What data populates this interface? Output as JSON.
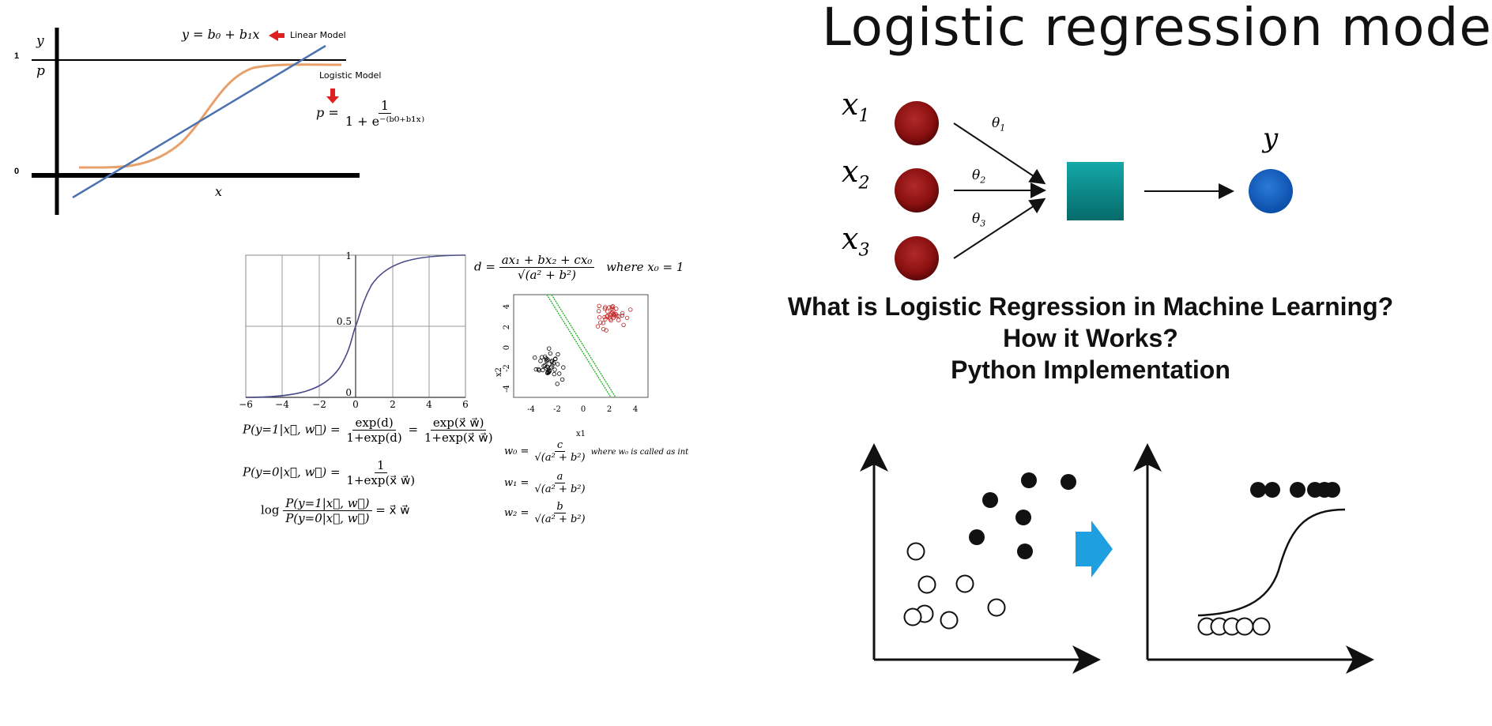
{
  "panel_linear_logistic": {
    "y_axis_label": "y",
    "p_axis_label": "p",
    "x_axis_label": "x",
    "tick_one": "1",
    "tick_zero": "0",
    "linear_equation": "y = b₀ + b₁x",
    "linear_model_label": "Linear Model",
    "logistic_model_label": "Logistic Model",
    "logistic_eq_lhs": "p =",
    "logistic_eq_num": "1",
    "logistic_eq_den": "1 + e⁻⁽ᵇ⁰⁺ᵇ¹ˣ⁾",
    "colors": {
      "linear_line": "#4a72b0",
      "logistic_curve": "#e8a06a",
      "arrow": "#e02020"
    }
  },
  "panel_sigmoid": {
    "x_ticks": [
      "−6",
      "−4",
      "−2",
      "0",
      "2",
      "4",
      "6"
    ],
    "y_ticks": [
      "0",
      "0.5",
      "1"
    ],
    "curve_color": "#4b4b8a"
  },
  "panel_formulas": {
    "d_eq_lhs": "d =",
    "d_eq_num": "ax₁ + bx₂ + cx₀",
    "d_eq_den": "√(a² + b²)",
    "d_eq_where": "where x₀ = 1",
    "p1_lhs": "P(y=1|x⃗, w⃗) =",
    "p1_num1": "exp(d)",
    "p1_den1": "1+exp(d)",
    "p1_num2": "exp(x⃗ w⃗)",
    "p1_den2": "1+exp(x⃗ w⃗)",
    "p0_lhs": "P(y=0|x⃗, w⃗) =",
    "p0_num": "1",
    "p0_den": "1+exp(x⃗ w⃗)",
    "log_lhs": "log",
    "log_num": "P(y=1|x⃗, w⃗)",
    "log_den": "P(y=0|x⃗, w⃗)",
    "log_rhs": "= x⃗ w⃗",
    "w0_lhs": "w₀ =",
    "w0_num": "c",
    "w0_den": "√(a² + b²)",
    "w0_note": "where w₀ is called as int",
    "w1_lhs": "w₁ =",
    "w1_num": "a",
    "w1_den": "√(a² + b²)",
    "w2_lhs": "w₂ =",
    "w2_num": "b",
    "w2_den": "√(a² + b²)"
  },
  "panel_scatter": {
    "x_label": "x1",
    "y_label": "x2",
    "x_ticks": [
      "-4",
      "-2",
      "0",
      "2",
      "4"
    ],
    "y_ticks": [
      "-4",
      "-2",
      "0",
      "2",
      "4"
    ],
    "colors": {
      "class_a": "#000000",
      "class_b": "#c02020",
      "boundary": "#20b020"
    }
  },
  "title": "Logistic regression mode",
  "network": {
    "inputs": [
      "x",
      "x",
      "x"
    ],
    "input_subs": [
      "1",
      "2",
      "3"
    ],
    "weights": [
      "θ",
      "θ",
      "θ"
    ],
    "weight_subs": [
      "1",
      "2",
      "3"
    ],
    "output": "y",
    "colors": {
      "input_node": "#8b1010",
      "sum_node": "#0a8c8c",
      "output_node": "#0a5ab8"
    }
  },
  "headline": {
    "line1": "What is Logistic Regression in Machine Learning?",
    "line2": "How it Works?",
    "line3": "Python Implementation"
  },
  "illustration": {
    "arrow_color": "#1ea0e0"
  }
}
